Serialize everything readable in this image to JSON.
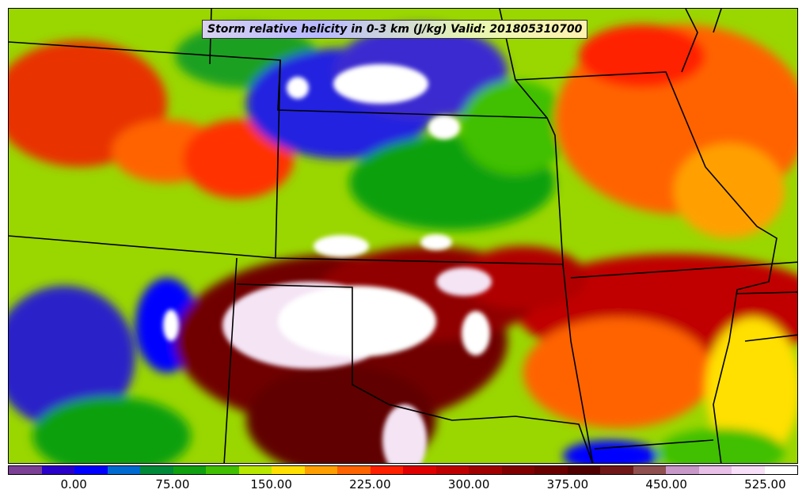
{
  "title": "Storm relative helicity in 0-3 km (J/kg) Valid: 201805310700",
  "colorbar": {
    "colors": [
      "#7b3f96",
      "#2a00c8",
      "#0000ff",
      "#006ad0",
      "#008a3a",
      "#10a010",
      "#40c000",
      "#b8e800",
      "#ffe000",
      "#ffa000",
      "#ff6400",
      "#ff2000",
      "#e00000",
      "#c00000",
      "#a00000",
      "#800000",
      "#6a0000",
      "#500000",
      "#701818",
      "#905050",
      "#c898c8",
      "#e8c0e8",
      "#f8e0f8",
      "#ffffff"
    ],
    "tick_labels": [
      "0.00",
      "75.00",
      "150.00",
      "225.00",
      "300.00",
      "375.00",
      "450.00",
      "525.00"
    ]
  }
}
